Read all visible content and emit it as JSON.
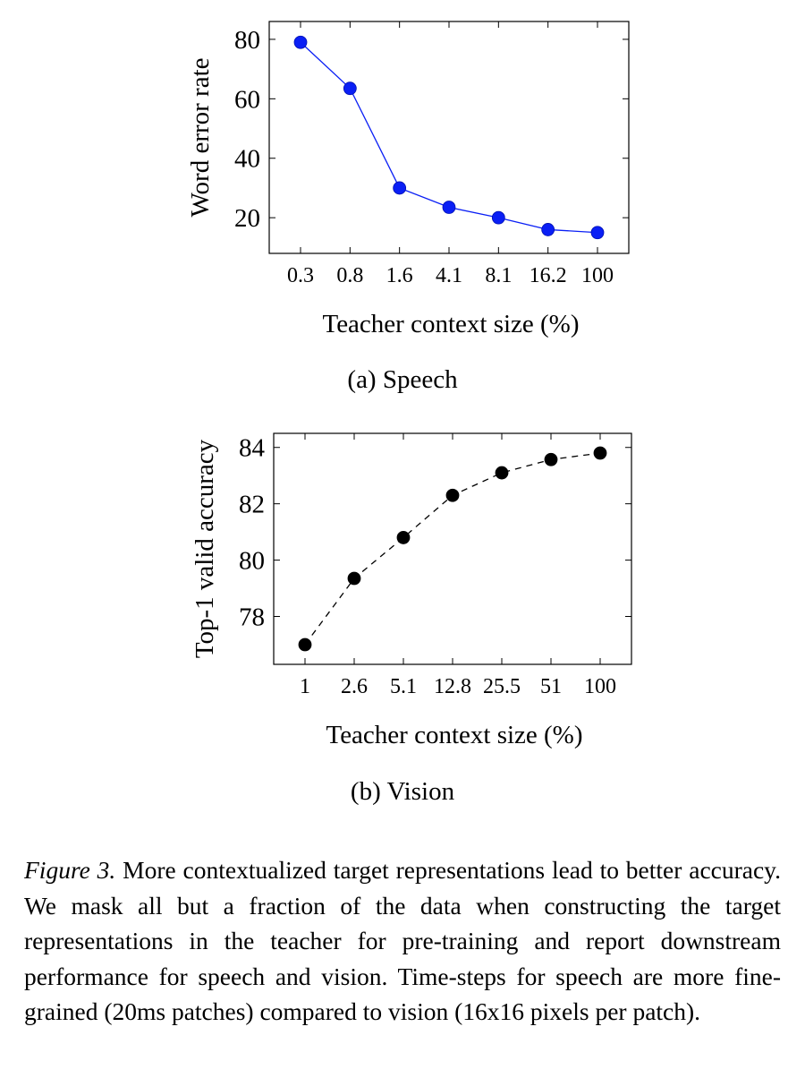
{
  "chart_data": [
    {
      "type": "line",
      "categories": [
        "0.3",
        "0.8",
        "1.6",
        "4.1",
        "8.1",
        "16.2",
        "100"
      ],
      "series": [
        {
          "values": [
            79,
            63.5,
            30,
            23.5,
            20,
            16,
            15
          ]
        }
      ],
      "xlabel": "Teacher context size (%)",
      "ylabel": "Word error rate",
      "ylim": [
        8,
        86
      ],
      "yticks": [
        20,
        40,
        60,
        80
      ],
      "line_style": "solid",
      "color": "#0a1ff5",
      "grid": false
    },
    {
      "type": "line",
      "categories": [
        "1",
        "2.6",
        "5.1",
        "12.8",
        "25.5",
        "51",
        "100"
      ],
      "series": [
        {
          "values": [
            77,
            79.35,
            80.8,
            82.3,
            83.1,
            83.57,
            83.8
          ]
        }
      ],
      "xlabel": "Teacher context size (%)",
      "ylabel": "Top-1 valid accuracy",
      "ylim": [
        76.3,
        84.5
      ],
      "yticks": [
        78,
        80,
        82,
        84
      ],
      "line_style": "dashed",
      "color": "#000000",
      "grid": false
    }
  ],
  "subcaptions": {
    "a": "(a) Speech",
    "b": "(b) Vision"
  },
  "caption": {
    "label": "Figure 3.",
    "text": "More contextualized target representations lead to better accuracy. We mask all but a fraction of the data when constructing the target representations in the teacher for pre-training and report downstream performance for speech and vision. Time-steps for speech are more fine-grained (20ms patches) compared to vision (16x16 pixels per patch)."
  }
}
